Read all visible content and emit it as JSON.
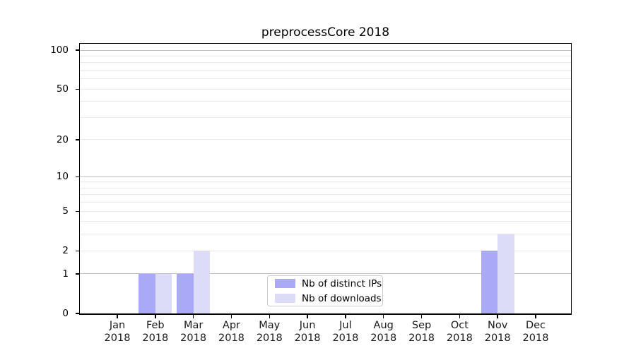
{
  "title": "preprocessCore 2018",
  "colors": {
    "distinct_ips": "#a9a9f8",
    "downloads": "#dcdcf8",
    "grid_major": "#bdbdbd",
    "grid_minor": "#e9e9e9",
    "axis": "#000000"
  },
  "legend": {
    "items": [
      {
        "key": "distinct_ips",
        "label": "Nb of distinct IPs"
      },
      {
        "key": "downloads",
        "label": "Nb of downloads"
      }
    ]
  },
  "chart_data": {
    "type": "bar",
    "title": "preprocessCore 2018",
    "categories": [
      "Jan 2018",
      "Feb 2018",
      "Mar 2018",
      "Apr 2018",
      "May 2018",
      "Jun 2018",
      "Jul 2018",
      "Aug 2018",
      "Sep 2018",
      "Oct 2018",
      "Nov 2018",
      "Dec 2018"
    ],
    "series": [
      {
        "name": "Nb of distinct IPs",
        "color_key": "distinct_ips",
        "values": [
          0,
          1,
          1,
          0,
          0,
          0,
          0,
          0,
          0,
          0,
          2,
          0
        ]
      },
      {
        "name": "Nb of downloads",
        "color_key": "downloads",
        "values": [
          0,
          1,
          2,
          0,
          0,
          0,
          0,
          0,
          0,
          0,
          3,
          0
        ]
      }
    ],
    "xlabel": "",
    "ylabel": "",
    "yscale": "log1p",
    "ylim": [
      0,
      112
    ],
    "yticks": [
      0,
      1,
      2,
      5,
      10,
      20,
      50,
      100
    ],
    "grid_major_values": [
      1,
      10,
      100
    ],
    "grid_minor_values": [
      2,
      3,
      4,
      5,
      6,
      7,
      8,
      9,
      20,
      30,
      40,
      50,
      60,
      70,
      80,
      90
    ],
    "grid": true,
    "legend_position": "bottom-center"
  }
}
